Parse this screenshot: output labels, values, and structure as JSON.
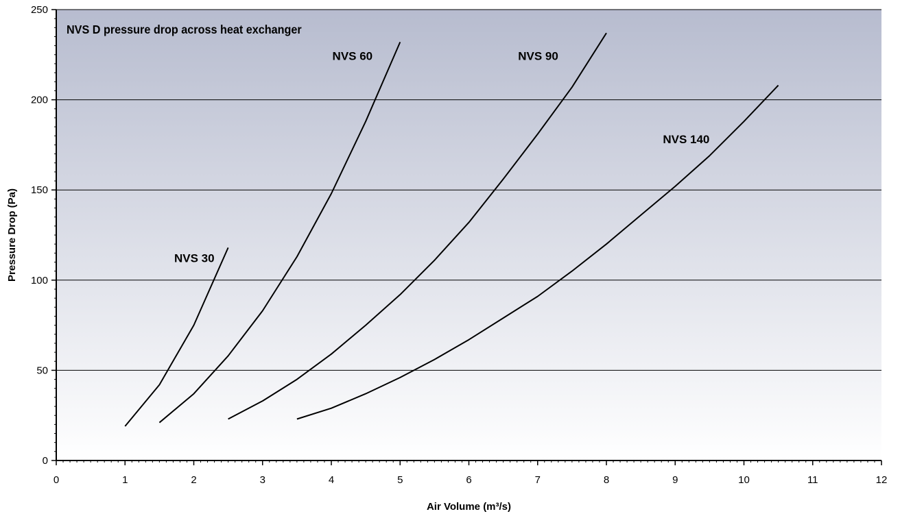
{
  "chart_data": {
    "type": "line",
    "title": "NVS D pressure drop across heat exchanger",
    "xlabel": "Air Volume (m³/s)",
    "ylabel": "Pressure Drop (Pa)",
    "xlim": [
      0,
      12
    ],
    "ylim": [
      0,
      250
    ],
    "xticks": [
      0,
      1,
      2,
      3,
      4,
      5,
      6,
      7,
      8,
      9,
      10,
      11,
      12
    ],
    "yticks": [
      0,
      50,
      100,
      150,
      200,
      250
    ],
    "grid": "horizontal",
    "background": {
      "top": "#b7bccf",
      "bottom": "#ffffff"
    },
    "line_color": "#000000",
    "series": [
      {
        "name": "NVS 30",
        "label_at": [
          2.3,
          110
        ],
        "x": [
          1.0,
          1.5,
          2.0,
          2.5
        ],
        "y": [
          19,
          42,
          75,
          118
        ]
      },
      {
        "name": "NVS 60",
        "label_at": [
          4.6,
          222
        ],
        "x": [
          1.5,
          2.0,
          2.5,
          3.0,
          3.5,
          4.0,
          4.5,
          5.0
        ],
        "y": [
          21,
          37,
          58,
          83,
          113,
          148,
          188,
          232
        ]
      },
      {
        "name": "NVS 90",
        "label_at": [
          7.3,
          222
        ],
        "x": [
          2.5,
          3.0,
          3.5,
          4.0,
          4.5,
          5.0,
          5.5,
          6.0,
          6.5,
          7.0,
          7.5,
          8.0
        ],
        "y": [
          23,
          33,
          45,
          59,
          75,
          92,
          111,
          132,
          156,
          181,
          207,
          237
        ]
      },
      {
        "name": "NVS 140",
        "label_at": [
          9.5,
          176
        ],
        "x": [
          3.5,
          4.0,
          4.5,
          5.0,
          5.5,
          6.0,
          6.5,
          7.0,
          7.5,
          8.0,
          8.5,
          9.0,
          9.5,
          10.0,
          10.5
        ],
        "y": [
          23,
          29,
          37,
          46,
          56,
          67,
          79,
          91,
          105,
          120,
          136,
          152,
          169,
          188,
          208
        ]
      }
    ]
  }
}
